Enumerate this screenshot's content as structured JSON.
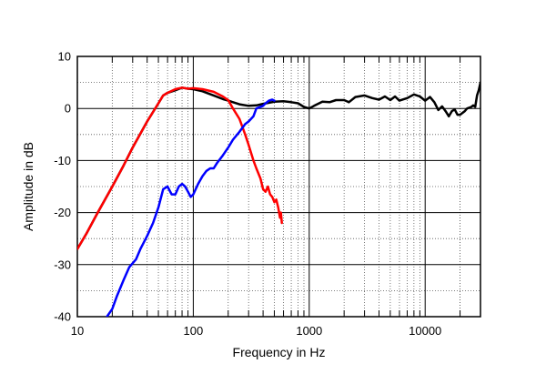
{
  "chart_data": {
    "type": "line",
    "xlabel": "Frequency in Hz",
    "ylabel": "Amplitude in dB",
    "x_scale": "log",
    "xlim": [
      10,
      30000
    ],
    "ylim": [
      -40,
      10
    ],
    "grid": true,
    "x_tick_labels": [
      {
        "value": 10,
        "label": "10"
      },
      {
        "value": 100,
        "label": "100"
      },
      {
        "value": 1000,
        "label": "1000"
      },
      {
        "value": 10000,
        "label": "10000"
      }
    ],
    "y_tick_labels": [
      {
        "value": 10,
        "label": "10"
      },
      {
        "value": 0,
        "label": "0"
      },
      {
        "value": -10,
        "label": "-10"
      },
      {
        "value": -20,
        "label": "-20"
      },
      {
        "value": -30,
        "label": "-30"
      },
      {
        "value": -40,
        "label": "-40"
      }
    ],
    "series": [
      {
        "color": "#000000",
        "points": [
          [
            10,
            -27
          ],
          [
            12,
            -24
          ],
          [
            15,
            -20
          ],
          [
            20,
            -15
          ],
          [
            25,
            -11
          ],
          [
            30,
            -7.5
          ],
          [
            40,
            -2.5
          ],
          [
            50,
            1
          ],
          [
            55,
            2.5
          ],
          [
            60,
            3
          ],
          [
            70,
            3.5
          ],
          [
            80,
            4
          ],
          [
            90,
            3.8
          ],
          [
            100,
            3.7
          ],
          [
            120,
            3.3
          ],
          [
            150,
            2.5
          ],
          [
            180,
            1.8
          ],
          [
            200,
            1.5
          ],
          [
            250,
            0.8
          ],
          [
            300,
            0.5
          ],
          [
            350,
            0.6
          ],
          [
            400,
            0.9
          ],
          [
            500,
            1.3
          ],
          [
            600,
            1.4
          ],
          [
            700,
            1.2
          ],
          [
            800,
            1
          ],
          [
            900,
            0.3
          ],
          [
            1000,
            0
          ],
          [
            1100,
            0.5
          ],
          [
            1300,
            1.3
          ],
          [
            1500,
            1.2
          ],
          [
            1700,
            1.6
          ],
          [
            2000,
            1.6
          ],
          [
            2200,
            1.2
          ],
          [
            2500,
            2.2
          ],
          [
            3000,
            2.5
          ],
          [
            3500,
            2
          ],
          [
            4000,
            1.7
          ],
          [
            4500,
            2.3
          ],
          [
            5000,
            1.6
          ],
          [
            5500,
            2.3
          ],
          [
            6000,
            1.5
          ],
          [
            7000,
            2
          ],
          [
            8000,
            2.7
          ],
          [
            9000,
            2.3
          ],
          [
            10000,
            1.5
          ],
          [
            11000,
            2.2
          ],
          [
            12000,
            1.2
          ],
          [
            13000,
            -0.3
          ],
          [
            14000,
            0.4
          ],
          [
            15000,
            -0.5
          ],
          [
            16000,
            -1.5
          ],
          [
            17000,
            -0.5
          ],
          [
            18000,
            -0.2
          ],
          [
            19000,
            -1.2
          ],
          [
            20000,
            -1.2
          ],
          [
            22000,
            -0.5
          ],
          [
            23000,
            0
          ],
          [
            25000,
            0.3
          ],
          [
            26000,
            0.6
          ],
          [
            27000,
            0.3
          ],
          [
            28000,
            2.5
          ],
          [
            29000,
            3.5
          ],
          [
            30000,
            5
          ]
        ]
      },
      {
        "color": "#ff0000",
        "points": [
          [
            10,
            -27
          ],
          [
            12,
            -24
          ],
          [
            15,
            -20
          ],
          [
            20,
            -15
          ],
          [
            25,
            -11
          ],
          [
            30,
            -7.5
          ],
          [
            40,
            -2.5
          ],
          [
            50,
            1
          ],
          [
            55,
            2.5
          ],
          [
            60,
            3
          ],
          [
            70,
            3.7
          ],
          [
            80,
            4
          ],
          [
            90,
            3.8
          ],
          [
            100,
            3.9
          ],
          [
            120,
            3.7
          ],
          [
            150,
            3.2
          ],
          [
            180,
            2.3
          ],
          [
            200,
            1.6
          ],
          [
            220,
            0
          ],
          [
            250,
            -2
          ],
          [
            280,
            -5
          ],
          [
            300,
            -7
          ],
          [
            330,
            -10
          ],
          [
            350,
            -11.5
          ],
          [
            380,
            -13.5
          ],
          [
            400,
            -15.5
          ],
          [
            420,
            -16
          ],
          [
            440,
            -15
          ],
          [
            460,
            -16.5
          ],
          [
            480,
            -17
          ],
          [
            500,
            -18
          ],
          [
            520,
            -17.5
          ],
          [
            540,
            -19
          ],
          [
            550,
            -20
          ],
          [
            560,
            -21
          ],
          [
            570,
            -20
          ],
          [
            580,
            -22
          ]
        ]
      },
      {
        "color": "#0000ff",
        "points": [
          [
            18,
            -40
          ],
          [
            20,
            -38.5
          ],
          [
            22,
            -36
          ],
          [
            25,
            -33
          ],
          [
            28,
            -30.5
          ],
          [
            32,
            -29
          ],
          [
            35,
            -27
          ],
          [
            40,
            -24.5
          ],
          [
            45,
            -22
          ],
          [
            50,
            -19
          ],
          [
            55,
            -15.5
          ],
          [
            60,
            -15
          ],
          [
            65,
            -16.5
          ],
          [
            70,
            -16.5
          ],
          [
            75,
            -15
          ],
          [
            80,
            -14.5
          ],
          [
            85,
            -15
          ],
          [
            90,
            -16
          ],
          [
            95,
            -17
          ],
          [
            100,
            -16.5
          ],
          [
            110,
            -14.5
          ],
          [
            120,
            -13
          ],
          [
            130,
            -12
          ],
          [
            140,
            -11.5
          ],
          [
            150,
            -11.5
          ],
          [
            160,
            -10.5
          ],
          [
            180,
            -9
          ],
          [
            200,
            -7.5
          ],
          [
            220,
            -6
          ],
          [
            250,
            -4.5
          ],
          [
            280,
            -3
          ],
          [
            300,
            -2.5
          ],
          [
            330,
            -1.5
          ],
          [
            350,
            0
          ],
          [
            400,
            0.5
          ],
          [
            420,
            1
          ],
          [
            450,
            1.5
          ],
          [
            480,
            1.7
          ],
          [
            500,
            1.5
          ]
        ]
      }
    ]
  }
}
